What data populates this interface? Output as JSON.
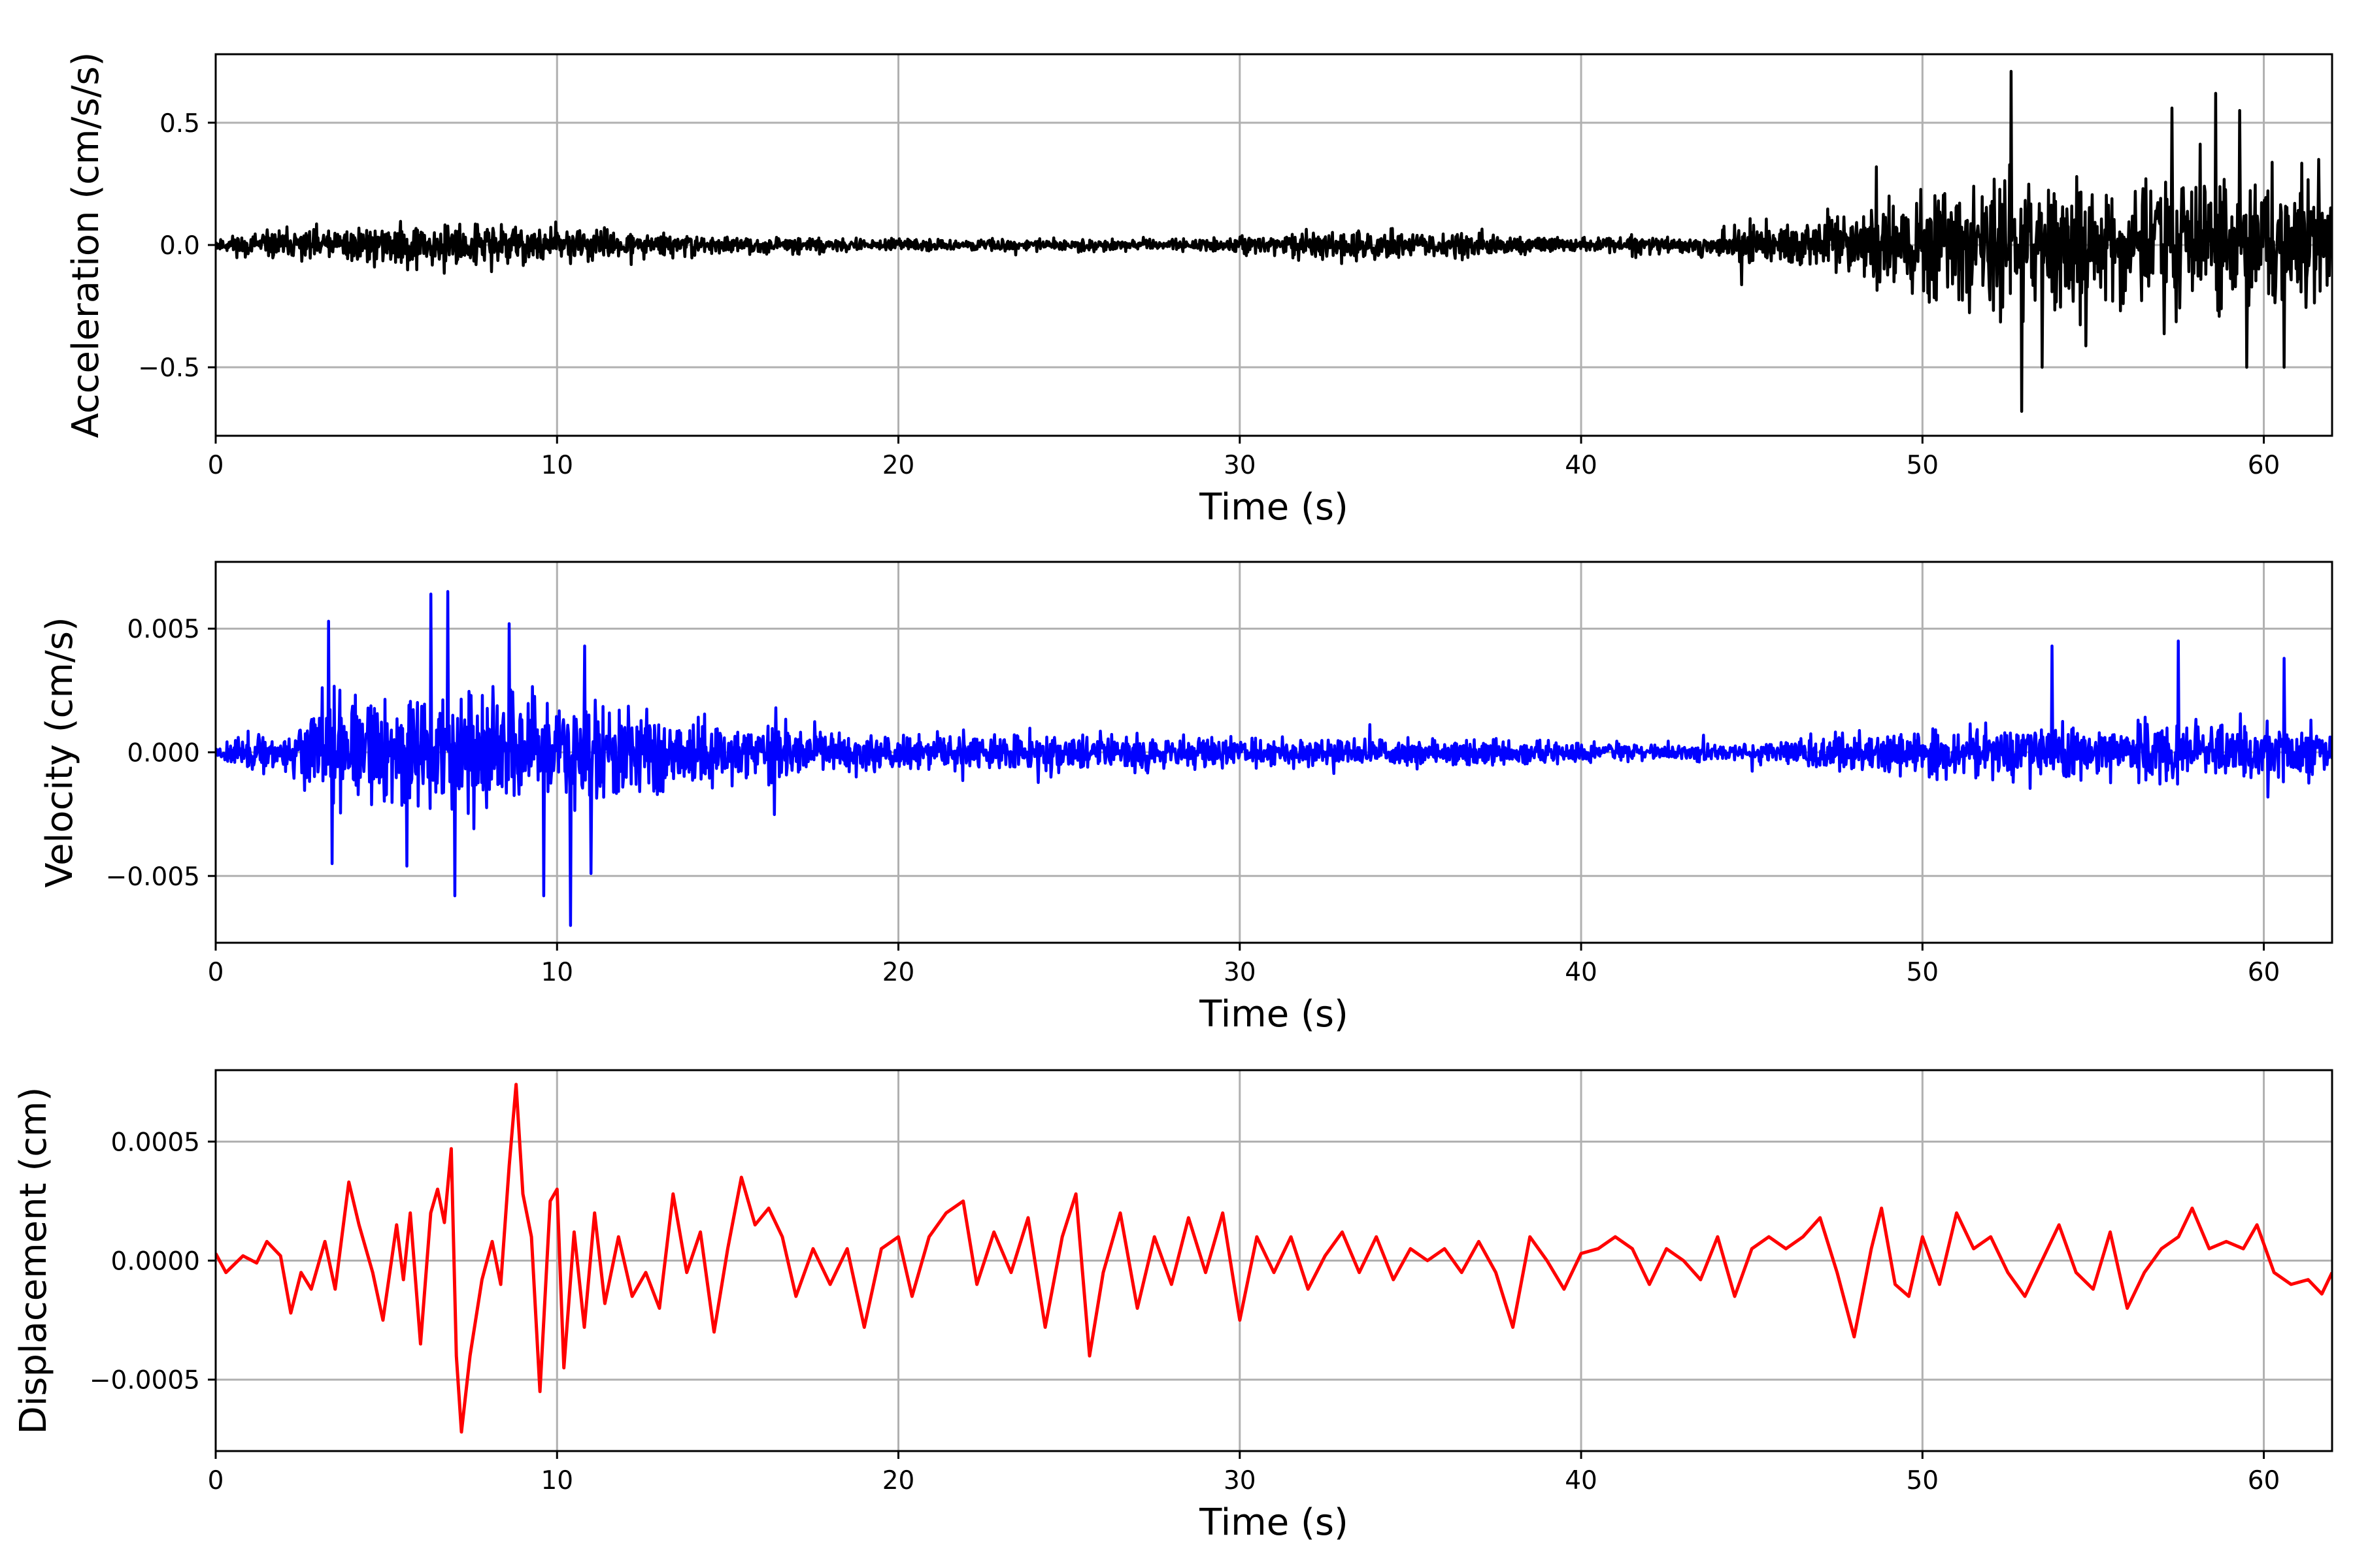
{
  "chart_data": [
    {
      "type": "line",
      "xlabel": "Time (s)",
      "ylabel": "Acceleration (cm/s/s)",
      "xlim": [
        0,
        62
      ],
      "ylim": [
        -0.78,
        0.78
      ],
      "x_ticks": [
        0,
        10,
        20,
        30,
        40,
        50,
        60
      ],
      "x_tick_labels": [
        "0",
        "10",
        "20",
        "30",
        "40",
        "50",
        "60"
      ],
      "y_ticks": [
        -0.5,
        0.0,
        0.5
      ],
      "y_tick_labels": [
        "−0.5",
        "0.0",
        "0.5"
      ],
      "grid": true,
      "series": [
        {
          "color": "#000000",
          "envelope": [
            [
              0,
              0.05
            ],
            [
              2,
              0.1
            ],
            [
              5,
              0.12
            ],
            [
              7,
              0.15
            ],
            [
              10,
              0.12
            ],
            [
              12,
              0.08
            ],
            [
              15,
              0.05
            ],
            [
              20,
              0.035
            ],
            [
              25,
              0.04
            ],
            [
              28,
              0.035
            ],
            [
              31,
              0.06
            ],
            [
              33,
              0.12
            ],
            [
              35,
              0.08
            ],
            [
              37,
              0.08
            ],
            [
              40,
              0.04
            ],
            [
              43,
              0.06
            ],
            [
              46,
              0.15
            ],
            [
              48,
              0.22
            ],
            [
              50,
              0.35
            ],
            [
              52,
              0.4
            ],
            [
              55,
              0.38
            ],
            [
              58,
              0.42
            ],
            [
              60,
              0.4
            ],
            [
              62,
              0.38
            ]
          ],
          "peaks": [
            [
              52.6,
              0.71
            ],
            [
              52.9,
              -0.68
            ],
            [
              58.6,
              0.62
            ],
            [
              59.3,
              0.55
            ],
            [
              57.3,
              0.56
            ],
            [
              53.5,
              -0.5
            ],
            [
              59.5,
              -0.5
            ],
            [
              60.6,
              -0.5
            ],
            [
              61.6,
              0.35
            ]
          ]
        }
      ]
    },
    {
      "type": "line",
      "xlabel": "Time (s)",
      "ylabel": "Velocity (cm/s)",
      "xlim": [
        0,
        62
      ],
      "ylim": [
        -0.0077,
        0.0077
      ],
      "x_ticks": [
        0,
        10,
        20,
        30,
        40,
        50,
        60
      ],
      "x_tick_labels": [
        "0",
        "10",
        "20",
        "30",
        "40",
        "50",
        "60"
      ],
      "y_ticks": [
        -0.005,
        0.0,
        0.005
      ],
      "y_tick_labels": [
        "−0.005",
        "0.000",
        "0.005"
      ],
      "grid": true,
      "series": [
        {
          "color": "#0000ff",
          "envelope": [
            [
              0,
              0.0006
            ],
            [
              2,
              0.0015
            ],
            [
              3,
              0.003
            ],
            [
              5,
              0.0035
            ],
            [
              7,
              0.004
            ],
            [
              9,
              0.0035
            ],
            [
              11,
              0.0035
            ],
            [
              13,
              0.0025
            ],
            [
              16,
              0.0018
            ],
            [
              20,
              0.0012
            ],
            [
              25,
              0.0013
            ],
            [
              30,
              0.0009
            ],
            [
              35,
              0.0009
            ],
            [
              40,
              0.0006
            ],
            [
              45,
              0.0006
            ],
            [
              48,
              0.0012
            ],
            [
              50,
              0.0015
            ],
            [
              52,
              0.0018
            ],
            [
              55,
              0.0018
            ],
            [
              58,
              0.002
            ],
            [
              60,
              0.0018
            ],
            [
              62,
              0.0015
            ]
          ],
          "peaks": [
            [
              3.3,
              0.0053
            ],
            [
              6.3,
              0.0064
            ],
            [
              6.8,
              0.0065
            ],
            [
              7.0,
              -0.0058
            ],
            [
              8.6,
              0.0052
            ],
            [
              9.6,
              -0.0058
            ],
            [
              10.4,
              -0.007
            ],
            [
              10.8,
              0.0043
            ],
            [
              11.0,
              -0.0049
            ],
            [
              3.4,
              -0.0045
            ],
            [
              5.6,
              -0.0046
            ],
            [
              53.8,
              0.0043
            ],
            [
              57.5,
              0.0045
            ],
            [
              60.6,
              0.0038
            ]
          ]
        }
      ]
    },
    {
      "type": "line",
      "xlabel": "Time (s)",
      "ylabel": "Displacement (cm)",
      "xlim": [
        0,
        62
      ],
      "ylim": [
        -0.0008,
        0.0008
      ],
      "x_ticks": [
        0,
        10,
        20,
        30,
        40,
        50,
        60
      ],
      "x_tick_labels": [
        "0",
        "10",
        "20",
        "30",
        "40",
        "50",
        "60"
      ],
      "y_ticks": [
        -0.0005,
        0.0,
        0.0005
      ],
      "y_tick_labels": [
        "−0.0005",
        "0.0000",
        "0.0005"
      ],
      "grid": true,
      "series": [
        {
          "color": "#ff0000",
          "points": [
            [
              0,
              3e-05
            ],
            [
              0.3,
              -5e-05
            ],
            [
              0.8,
              2e-05
            ],
            [
              1.2,
              -1e-05
            ],
            [
              1.5,
              8e-05
            ],
            [
              1.9,
              2e-05
            ],
            [
              2.2,
              -0.00022
            ],
            [
              2.5,
              -5e-05
            ],
            [
              2.8,
              -0.00012
            ],
            [
              3.2,
              8e-05
            ],
            [
              3.5,
              -0.00012
            ],
            [
              3.9,
              0.00033
            ],
            [
              4.2,
              0.00015
            ],
            [
              4.6,
              -5e-05
            ],
            [
              4.9,
              -0.00025
            ],
            [
              5.3,
              0.00015
            ],
            [
              5.5,
              -8e-05
            ],
            [
              5.7,
              0.0002
            ],
            [
              6.0,
              -0.00035
            ],
            [
              6.3,
              0.0002
            ],
            [
              6.5,
              0.0003
            ],
            [
              6.7,
              0.00016
            ],
            [
              6.9,
              0.00047
            ],
            [
              7.05,
              -0.0004
            ],
            [
              7.2,
              -0.00072
            ],
            [
              7.45,
              -0.0004
            ],
            [
              7.8,
              -8e-05
            ],
            [
              8.1,
              8e-05
            ],
            [
              8.35,
              -0.0001
            ],
            [
              8.6,
              0.0004
            ],
            [
              8.8,
              0.00074
            ],
            [
              9.0,
              0.00028
            ],
            [
              9.25,
              0.0001
            ],
            [
              9.5,
              -0.00055
            ],
            [
              9.8,
              0.00025
            ],
            [
              10.0,
              0.0003
            ],
            [
              10.2,
              -0.00045
            ],
            [
              10.5,
              0.00012
            ],
            [
              10.8,
              -0.00028
            ],
            [
              11.1,
              0.0002
            ],
            [
              11.4,
              -0.00018
            ],
            [
              11.8,
              0.0001
            ],
            [
              12.2,
              -0.00015
            ],
            [
              12.6,
              -5e-05
            ],
            [
              13.0,
              -0.0002
            ],
            [
              13.4,
              0.00028
            ],
            [
              13.8,
              -5e-05
            ],
            [
              14.2,
              0.00012
            ],
            [
              14.6,
              -0.0003
            ],
            [
              15.0,
              5e-05
            ],
            [
              15.4,
              0.00035
            ],
            [
              15.8,
              0.00015
            ],
            [
              16.2,
              0.00022
            ],
            [
              16.6,
              0.0001
            ],
            [
              17.0,
              -0.00015
            ],
            [
              17.5,
              5e-05
            ],
            [
              18.0,
              -0.0001
            ],
            [
              18.5,
              5e-05
            ],
            [
              19.0,
              -0.00028
            ],
            [
              19.5,
              5e-05
            ],
            [
              20.0,
              0.0001
            ],
            [
              20.4,
              -0.00015
            ],
            [
              20.9,
              0.0001
            ],
            [
              21.4,
              0.0002
            ],
            [
              21.9,
              0.00025
            ],
            [
              22.3,
              -0.0001
            ],
            [
              22.8,
              0.00012
            ],
            [
              23.3,
              -5e-05
            ],
            [
              23.8,
              0.00018
            ],
            [
              24.3,
              -0.00028
            ],
            [
              24.8,
              0.0001
            ],
            [
              25.2,
              0.00028
            ],
            [
              25.6,
              -0.0004
            ],
            [
              26.0,
              -5e-05
            ],
            [
              26.5,
              0.0002
            ],
            [
              27.0,
              -0.0002
            ],
            [
              27.5,
              0.0001
            ],
            [
              28.0,
              -0.0001
            ],
            [
              28.5,
              0.00018
            ],
            [
              29.0,
              -5e-05
            ],
            [
              29.5,
              0.0002
            ],
            [
              30.0,
              -0.00025
            ],
            [
              30.5,
              0.0001
            ],
            [
              31.0,
              -5e-05
            ],
            [
              31.5,
              0.0001
            ],
            [
              32.0,
              -0.00012
            ],
            [
              32.5,
              2e-05
            ],
            [
              33.0,
              0.00012
            ],
            [
              33.5,
              -5e-05
            ],
            [
              34.0,
              0.0001
            ],
            [
              34.5,
              -8e-05
            ],
            [
              35.0,
              5e-05
            ],
            [
              35.5,
              0.0
            ],
            [
              36.0,
              5e-05
            ],
            [
              36.5,
              -5e-05
            ],
            [
              37.0,
              8e-05
            ],
            [
              37.5,
              -5e-05
            ],
            [
              38.0,
              -0.00028
            ],
            [
              38.5,
              0.0001
            ],
            [
              39.0,
              0.0
            ],
            [
              39.5,
              -0.00012
            ],
            [
              40.0,
              3e-05
            ],
            [
              40.5,
              5e-05
            ],
            [
              41.0,
              0.0001
            ],
            [
              41.5,
              5e-05
            ],
            [
              42.0,
              -0.0001
            ],
            [
              42.5,
              5e-05
            ],
            [
              43.0,
              0.0
            ],
            [
              43.5,
              -8e-05
            ],
            [
              44.0,
              0.0001
            ],
            [
              44.5,
              -0.00015
            ],
            [
              45.0,
              5e-05
            ],
            [
              45.5,
              0.0001
            ],
            [
              46.0,
              5e-05
            ],
            [
              46.5,
              0.0001
            ],
            [
              47.0,
              0.00018
            ],
            [
              47.5,
              -5e-05
            ],
            [
              48.0,
              -0.00032
            ],
            [
              48.5,
              5e-05
            ],
            [
              48.8,
              0.00022
            ],
            [
              49.2,
              -0.0001
            ],
            [
              49.6,
              -0.00015
            ],
            [
              50.0,
              0.0001
            ],
            [
              50.5,
              -0.0001
            ],
            [
              51.0,
              0.0002
            ],
            [
              51.5,
              5e-05
            ],
            [
              52.0,
              0.0001
            ],
            [
              52.5,
              -5e-05
            ],
            [
              53.0,
              -0.00015
            ],
            [
              53.5,
              0.0
            ],
            [
              54.0,
              0.00015
            ],
            [
              54.5,
              -5e-05
            ],
            [
              55.0,
              -0.00012
            ],
            [
              55.5,
              0.00012
            ],
            [
              56.0,
              -0.0002
            ],
            [
              56.5,
              -5e-05
            ],
            [
              57.0,
              5e-05
            ],
            [
              57.5,
              0.0001
            ],
            [
              57.9,
              0.00022
            ],
            [
              58.4,
              5e-05
            ],
            [
              58.9,
              8e-05
            ],
            [
              59.4,
              5e-05
            ],
            [
              59.8,
              0.00015
            ],
            [
              60.3,
              -5e-05
            ],
            [
              60.8,
              -0.0001
            ],
            [
              61.3,
              -8e-05
            ],
            [
              61.7,
              -0.00014
            ],
            [
              62,
              -5e-05
            ]
          ]
        }
      ]
    }
  ]
}
